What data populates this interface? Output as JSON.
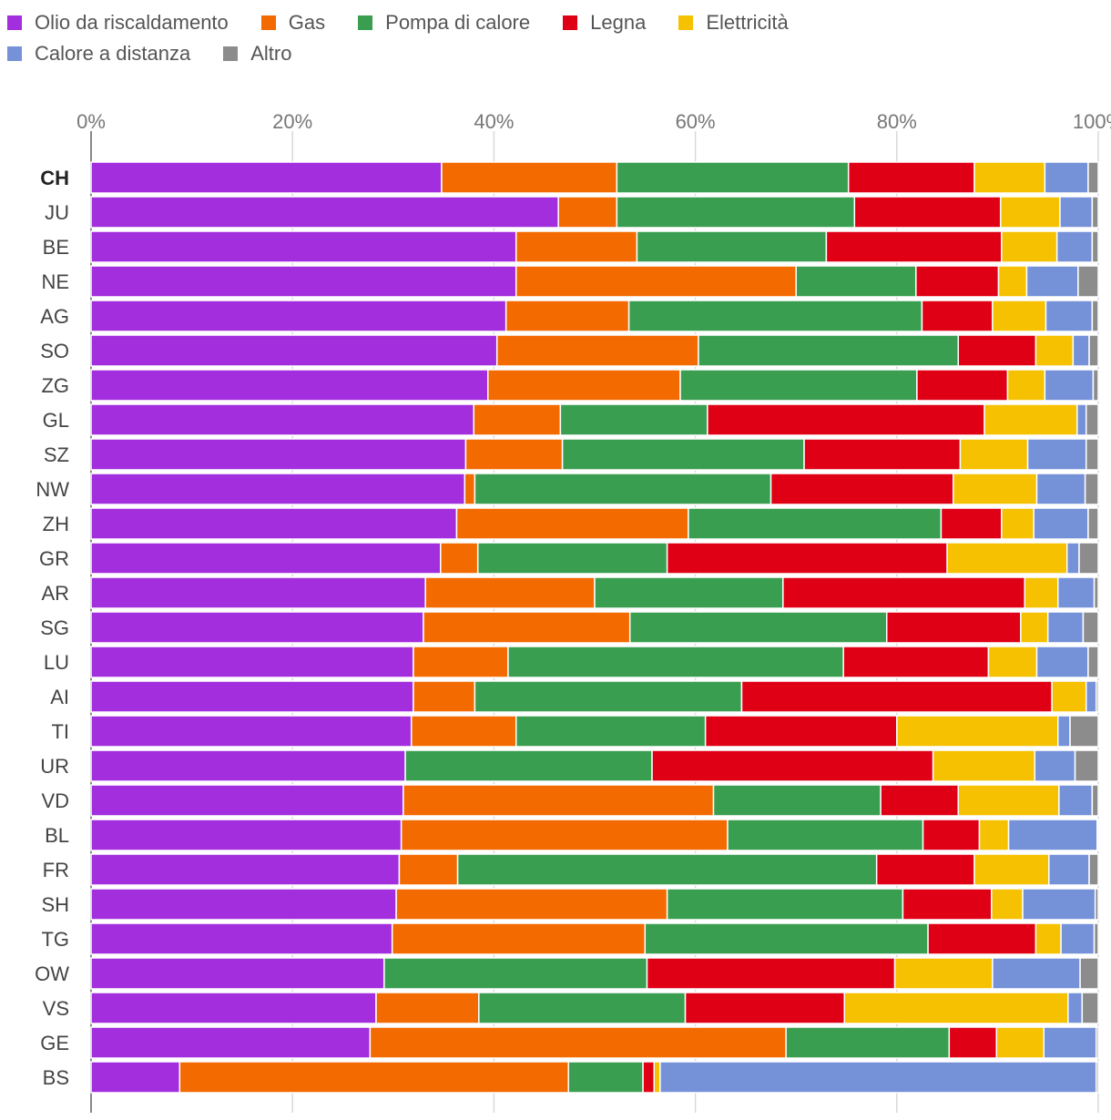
{
  "chart_data": {
    "type": "bar",
    "orientation": "horizontal",
    "stacked": "percent",
    "title": "",
    "xlabel": "",
    "ylabel": "",
    "xlim": [
      0,
      100
    ],
    "x_ticks": [
      "0%",
      "20%",
      "40%",
      "60%",
      "80%",
      "100%"
    ],
    "x_tick_values": [
      0,
      20,
      40,
      60,
      80,
      100
    ],
    "legend_position": "top-left",
    "grid": true,
    "highlight_category": "CH",
    "categories": [
      "CH",
      "JU",
      "BE",
      "NE",
      "AG",
      "SO",
      "ZG",
      "GL",
      "SZ",
      "NW",
      "ZH",
      "GR",
      "AR",
      "SG",
      "LU",
      "AI",
      "TI",
      "UR",
      "VD",
      "BL",
      "FR",
      "SH",
      "TG",
      "OW",
      "VS",
      "GE",
      "BS"
    ],
    "series": [
      {
        "name": "Olio da riscaldamento",
        "color": "#a22ede",
        "values": [
          34.8,
          46.4,
          42.2,
          42.2,
          41.2,
          40.3,
          39.4,
          38.0,
          37.2,
          37.1,
          36.3,
          34.7,
          33.2,
          33.0,
          32.0,
          32.0,
          31.8,
          31.2,
          31.0,
          30.8,
          30.6,
          30.3,
          29.9,
          29.1,
          28.3,
          27.7,
          8.8
        ]
      },
      {
        "name": "Gas",
        "color": "#f36a00",
        "values": [
          17.4,
          5.8,
          12.0,
          27.8,
          12.2,
          20.0,
          19.1,
          8.6,
          9.6,
          1.0,
          23.0,
          3.7,
          16.8,
          20.5,
          9.4,
          6.1,
          10.4,
          0.0,
          30.8,
          32.4,
          5.8,
          26.9,
          25.1,
          0.0,
          10.2,
          41.3,
          38.6
        ]
      },
      {
        "name": "Pompa di calore",
        "color": "#3a9e50",
        "values": [
          23.0,
          23.6,
          18.8,
          11.9,
          29.1,
          25.8,
          23.5,
          14.6,
          24.0,
          29.4,
          25.1,
          18.8,
          18.7,
          25.5,
          33.3,
          26.5,
          18.8,
          24.5,
          16.6,
          19.4,
          41.6,
          23.4,
          28.1,
          26.1,
          20.5,
          16.2,
          7.4
        ]
      },
      {
        "name": "Legna",
        "color": "#e00016",
        "values": [
          12.5,
          14.5,
          17.4,
          8.2,
          7.0,
          7.7,
          9.0,
          27.5,
          15.5,
          18.1,
          6.0,
          27.8,
          24.0,
          13.3,
          14.4,
          30.8,
          19.0,
          27.9,
          7.7,
          5.6,
          9.7,
          8.8,
          10.7,
          24.6,
          15.8,
          4.7,
          1.1
        ]
      },
      {
        "name": "Elettricità",
        "color": "#f5c100",
        "values": [
          7.0,
          5.9,
          5.5,
          2.8,
          5.3,
          3.7,
          3.7,
          9.2,
          6.7,
          8.3,
          3.2,
          11.9,
          3.3,
          2.7,
          4.8,
          3.4,
          16.0,
          10.1,
          10.0,
          2.9,
          7.4,
          3.1,
          2.5,
          9.7,
          22.2,
          4.7,
          0.6
        ]
      },
      {
        "name": "Calore a distanza",
        "color": "#7591d8",
        "values": [
          4.3,
          3.2,
          3.5,
          5.1,
          4.6,
          1.6,
          4.8,
          0.9,
          5.8,
          4.8,
          5.4,
          1.2,
          3.6,
          3.5,
          5.1,
          1.0,
          1.2,
          4.0,
          3.3,
          8.8,
          4.0,
          7.2,
          3.3,
          8.7,
          1.4,
          5.2,
          43.3
        ]
      },
      {
        "name": "Altro",
        "color": "#8c8c8c",
        "values": [
          1.0,
          0.6,
          0.6,
          2.0,
          0.6,
          0.9,
          0.5,
          1.2,
          1.2,
          1.3,
          1.0,
          1.9,
          0.4,
          1.5,
          1.0,
          0.2,
          2.8,
          2.3,
          0.6,
          0.1,
          0.9,
          0.3,
          0.4,
          1.8,
          1.6,
          0.2,
          0.2
        ]
      }
    ]
  }
}
